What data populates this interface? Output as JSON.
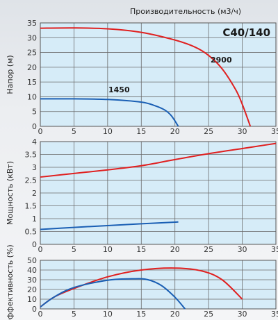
{
  "title": "Производительность (м3/ч)",
  "model": "C40/140",
  "colors": {
    "speed_2900": "#e02020",
    "speed_1450": "#1a5fb4",
    "grid": "#6a6a6a",
    "panel": "#d6ecf8",
    "axis": "#555555"
  },
  "chart_data": [
    {
      "type": "line",
      "ylabel": "Напор (м)",
      "xlim": [
        0,
        35
      ],
      "ylim": [
        0,
        35
      ],
      "x_ticks": [
        0,
        5,
        10,
        15,
        20,
        25,
        30,
        35
      ],
      "y_ticks": [
        0,
        5,
        10,
        15,
        20,
        25,
        30,
        35
      ],
      "series": [
        {
          "name": "2900",
          "color": "#e02020",
          "x": [
            0,
            5,
            10,
            15,
            20,
            23,
            25,
            27,
            29,
            30,
            31.2
          ],
          "y": [
            33.2,
            33.3,
            33.0,
            31.8,
            29.2,
            26.8,
            24.0,
            19.5,
            12.5,
            7.5,
            0
          ]
        },
        {
          "name": "1450",
          "color": "#1a5fb4",
          "x": [
            0,
            5,
            10,
            15,
            17,
            18.5,
            19.5,
            20.5
          ],
          "y": [
            9.3,
            9.3,
            9.1,
            8.2,
            7.0,
            5.5,
            3.5,
            0
          ]
        }
      ]
    },
    {
      "type": "line",
      "ylabel": "Мощность (кВт)",
      "xlim": [
        0,
        35
      ],
      "ylim": [
        0,
        4
      ],
      "x_ticks": [
        0,
        5,
        10,
        15,
        20,
        25,
        30,
        35
      ],
      "y_ticks": [
        0,
        0.5,
        1,
        1.5,
        2,
        2.5,
        3,
        3.5,
        4
      ],
      "series": [
        {
          "name": "2900",
          "color": "#e02020",
          "x": [
            0,
            5,
            10,
            15,
            20,
            25,
            30,
            35
          ],
          "y": [
            2.62,
            2.76,
            2.9,
            3.06,
            3.3,
            3.53,
            3.73,
            3.93
          ]
        },
        {
          "name": "1450",
          "color": "#1a5fb4",
          "x": [
            0,
            5,
            10,
            15,
            20.5
          ],
          "y": [
            0.58,
            0.66,
            0.73,
            0.8,
            0.87
          ]
        }
      ]
    },
    {
      "type": "line",
      "ylabel": "Эффективность (%)",
      "xlim": [
        0,
        35
      ],
      "ylim": [
        0,
        50
      ],
      "x_ticks": [
        0,
        5,
        10,
        15,
        20,
        25,
        30,
        35
      ],
      "y_ticks": [
        0,
        10,
        20,
        30,
        40,
        50
      ],
      "series": [
        {
          "name": "2900",
          "color": "#e02020",
          "x": [
            0,
            2,
            5,
            10,
            15,
            20,
            24,
            27,
            30
          ],
          "y": [
            2,
            12,
            21,
            33,
            40,
            42,
            39,
            30,
            10
          ]
        },
        {
          "name": "1450",
          "color": "#1a5fb4",
          "x": [
            0,
            2,
            5,
            10,
            14,
            16,
            18,
            20,
            21.5
          ],
          "y": [
            2,
            12,
            22,
            29.5,
            31,
            30,
            24,
            12,
            0
          ]
        }
      ]
    }
  ],
  "annotations": {
    "label_2900": "2900",
    "label_1450": "1450"
  }
}
